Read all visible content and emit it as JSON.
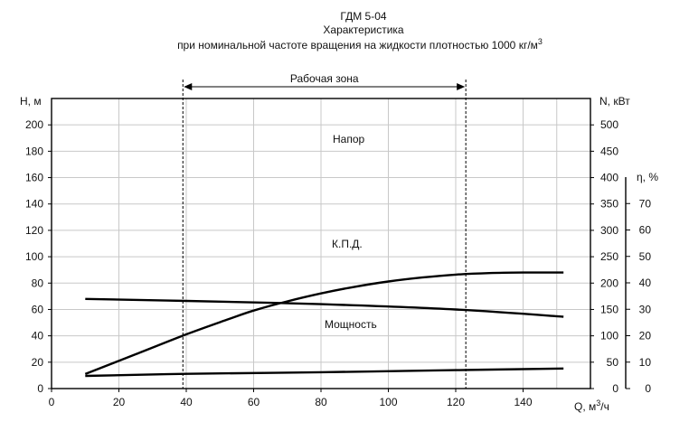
{
  "chart_data": {
    "type": "line",
    "title_lines": [
      "ГДМ 5-04",
      "Характеристика",
      "при номинальной  частоте  вращения  на жидкости плотностью  1000  кг/м"
    ],
    "title_superscript": "3",
    "xlabel": "Q, м",
    "xlabel_sup": "3",
    "xlabel_suffix": "/ч",
    "ylabel_left": "Н, м",
    "ylabel_right": "N, кВт",
    "ylabel_eta": "η, %",
    "xlim": [
      0,
      160
    ],
    "ylim_left": [
      0,
      220
    ],
    "ylim_right": [
      0,
      550
    ],
    "ylim_eta": [
      0,
      80
    ],
    "x_ticks": [
      0,
      20,
      40,
      60,
      80,
      100,
      120,
      140
    ],
    "left_ticks": [
      0,
      20,
      40,
      60,
      80,
      100,
      120,
      140,
      160,
      180,
      200
    ],
    "right_ticks": [
      0,
      50,
      100,
      150,
      200,
      250,
      300,
      350,
      400,
      450,
      500
    ],
    "eta_ticks": [
      0,
      10,
      20,
      30,
      40,
      50,
      60,
      70
    ],
    "grid": true,
    "working_zone": {
      "label": "Рабочая  зона",
      "x_start": 39,
      "x_end": 123
    },
    "series": [
      {
        "name": "Напор",
        "axis": "left",
        "x": [
          10,
          40,
          80,
          120,
          152
        ],
        "values": [
          68,
          66.5,
          64,
          60,
          54.5
        ]
      },
      {
        "name": "К.П.Д.",
        "axis": "eta",
        "x": [
          10,
          25,
          40,
          52,
          60,
          70,
          80,
          90,
          100,
          110,
          120,
          130,
          140,
          152
        ],
        "values": [
          5.5,
          13,
          20.5,
          26,
          29.5,
          33,
          36,
          38.5,
          40.5,
          42,
          43.1,
          43.7,
          43.9,
          43.9
        ]
      },
      {
        "name": "Мощность",
        "axis": "right",
        "x": [
          10,
          40,
          80,
          120,
          152
        ],
        "values": [
          24,
          28,
          31,
          35,
          38
        ]
      }
    ],
    "annotations": {
      "napor": "Напор",
      "kpd": "К.П.Д.",
      "moshchnost": "Мощность"
    }
  }
}
